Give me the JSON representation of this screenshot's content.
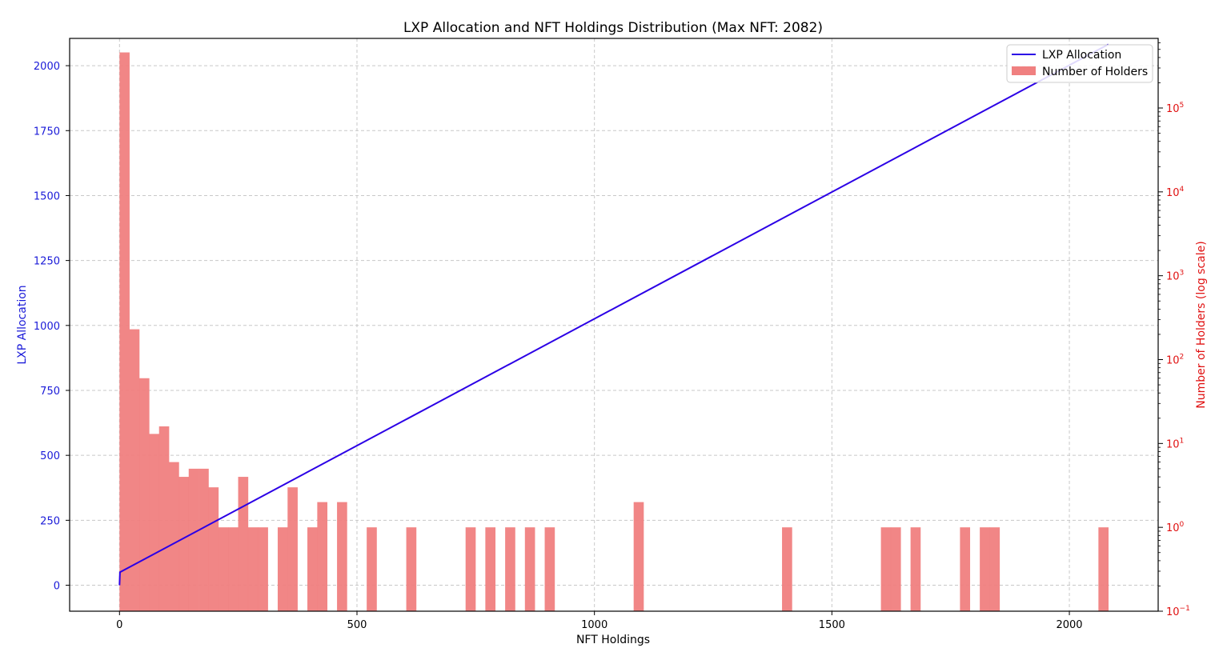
{
  "chart_data": {
    "type": "bar",
    "title": "LXP Allocation and NFT Holdings Distribution (Max NFT: 2082)",
    "xlabel": "NFT Holdings",
    "ylabel_left": "LXP Allocation",
    "ylabel_right": "Number of Holders (log scale)",
    "xlim": [
      -105,
      2187
    ],
    "ylim_left": [
      -100,
      2105
    ],
    "ylim_right_log10": [
      -1,
      5.83
    ],
    "x_ticks": [
      0,
      500,
      1000,
      1500,
      2000
    ],
    "y_left_ticks": [
      0,
      250,
      500,
      750,
      1000,
      1250,
      1500,
      1750,
      2000
    ],
    "y_right_ticks": [
      {
        "label": "10",
        "exp": "5",
        "log10": 5
      },
      {
        "label": "10",
        "exp": "4",
        "log10": 4
      },
      {
        "label": "10",
        "exp": "3",
        "log10": 3
      },
      {
        "label": "10",
        "exp": "2",
        "log10": 2
      },
      {
        "label": "10",
        "exp": "1",
        "log10": 1
      },
      {
        "label": "10",
        "exp": "0",
        "log10": 0
      },
      {
        "label": "10",
        "exp": "−1",
        "log10": -1
      }
    ],
    "grid": true,
    "legend": {
      "position": "upper-right",
      "entries": [
        {
          "label": "LXP Allocation",
          "color": "#2b00e6",
          "kind": "line"
        },
        {
          "label": "Number of Holders",
          "color": "#f08080",
          "kind": "patch"
        }
      ]
    },
    "series": [
      {
        "name": "LXP Allocation",
        "kind": "line",
        "axis": "left",
        "color": "#2b00e6",
        "points": [
          [
            0,
            0
          ],
          [
            1,
            50
          ],
          [
            2082,
            2082
          ]
        ]
      },
      {
        "name": "Number of Holders",
        "kind": "histogram",
        "axis": "right",
        "color": "#f08080",
        "bin_width": 20.8,
        "bins": [
          {
            "x0": 0,
            "count": 460000
          },
          {
            "x0": 20.8,
            "count": 230
          },
          {
            "x0": 41.6,
            "count": 60
          },
          {
            "x0": 62.5,
            "count": 13
          },
          {
            "x0": 83.3,
            "count": 16
          },
          {
            "x0": 104.1,
            "count": 6
          },
          {
            "x0": 124.9,
            "count": 4
          },
          {
            "x0": 145.7,
            "count": 5
          },
          {
            "x0": 166.6,
            "count": 5
          },
          {
            "x0": 187.4,
            "count": 3
          },
          {
            "x0": 208.2,
            "count": 1
          },
          {
            "x0": 229.0,
            "count": 1
          },
          {
            "x0": 249.8,
            "count": 4
          },
          {
            "x0": 270.7,
            "count": 1
          },
          {
            "x0": 291.5,
            "count": 1
          },
          {
            "x0": 333.1,
            "count": 1
          },
          {
            "x0": 353.9,
            "count": 3
          },
          {
            "x0": 395.6,
            "count": 1
          },
          {
            "x0": 416.4,
            "count": 2
          },
          {
            "x0": 458.0,
            "count": 2
          },
          {
            "x0": 520.5,
            "count": 1
          },
          {
            "x0": 603.8,
            "count": 1
          },
          {
            "x0": 728.7,
            "count": 1
          },
          {
            "x0": 770.3,
            "count": 1
          },
          {
            "x0": 812.0,
            "count": 1
          },
          {
            "x0": 853.6,
            "count": 1
          },
          {
            "x0": 895.3,
            "count": 1
          },
          {
            "x0": 1082.6,
            "count": 2
          },
          {
            "x0": 1395.0,
            "count": 1
          },
          {
            "x0": 1603.2,
            "count": 1
          },
          {
            "x0": 1624.0,
            "count": 1
          },
          {
            "x0": 1665.6,
            "count": 1
          },
          {
            "x0": 1769.7,
            "count": 1
          },
          {
            "x0": 1811.4,
            "count": 1
          },
          {
            "x0": 1832.2,
            "count": 1
          },
          {
            "x0": 2061.2,
            "count": 1
          }
        ]
      }
    ]
  }
}
